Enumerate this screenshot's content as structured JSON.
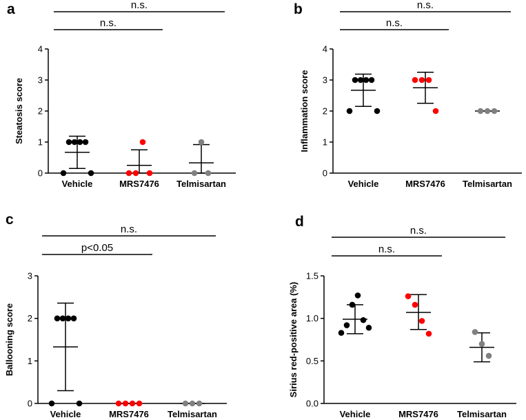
{
  "colors": {
    "Vehicle": "#000000",
    "MRS7476": "#ff0000",
    "Telmisartan": "#808080",
    "axis": "#000000"
  },
  "chart_data": [
    {
      "panel": "a",
      "type": "scatter",
      "title": "",
      "ylabel": "Steatosis score",
      "xlabel": "",
      "ylim": [
        0,
        4
      ],
      "yticks": [
        "0",
        "1",
        "2",
        "3",
        "4"
      ],
      "categories": [
        "Vehicle",
        "MRS7476",
        "Telmisartan"
      ],
      "points": [
        [
          0,
          1,
          1,
          1,
          1,
          0
        ],
        [
          0,
          0,
          1,
          0
        ],
        [
          0,
          1,
          0
        ]
      ],
      "mean": [
        0.67,
        0.25,
        0.33
      ],
      "sd_low": [
        0.15,
        0.0,
        0.0
      ],
      "sd_high": [
        1.19,
        0.75,
        0.92
      ],
      "comparisons": [
        {
          "from": "Vehicle",
          "to": "MRS7476",
          "label": "n.s."
        },
        {
          "from": "Vehicle",
          "to": "Telmisartan",
          "label": "n.s."
        }
      ]
    },
    {
      "panel": "b",
      "type": "scatter",
      "title": "",
      "ylabel": "Inflammation score",
      "xlabel": "",
      "ylim": [
        0,
        4
      ],
      "yticks": [
        "0",
        "1",
        "2",
        "3",
        "4"
      ],
      "categories": [
        "Vehicle",
        "MRS7476",
        "Telmisartan"
      ],
      "points": [
        [
          2,
          3,
          3,
          3,
          3,
          2
        ],
        [
          3,
          3,
          3,
          2
        ],
        [
          2,
          2,
          2
        ]
      ],
      "mean": [
        2.67,
        2.75,
        2.0
      ],
      "sd_low": [
        2.15,
        2.25,
        2.0
      ],
      "sd_high": [
        3.19,
        3.25,
        2.0
      ],
      "comparisons": [
        {
          "from": "Vehicle",
          "to": "MRS7476",
          "label": "n.s."
        },
        {
          "from": "Vehicle",
          "to": "Telmisartan",
          "label": "n.s."
        }
      ]
    },
    {
      "panel": "c",
      "type": "scatter",
      "title": "",
      "ylabel": "Ballooning score",
      "xlabel": "",
      "ylim": [
        0,
        3
      ],
      "yticks": [
        "0",
        "1",
        "2",
        "3"
      ],
      "categories": [
        "Vehicle",
        "MRS7476",
        "Telmisartan"
      ],
      "points": [
        [
          0,
          2,
          2,
          2,
          2,
          0
        ],
        [
          0,
          0,
          0,
          0
        ],
        [
          0,
          0,
          0
        ]
      ],
      "mean": [
        1.33,
        0.0,
        0.0
      ],
      "sd_low": [
        0.3,
        0.0,
        0.0
      ],
      "sd_high": [
        2.36,
        0.0,
        0.0
      ],
      "comparisons": [
        {
          "from": "Vehicle",
          "to": "MRS7476",
          "label": "p<0.05"
        },
        {
          "from": "Vehicle",
          "to": "Telmisartan",
          "label": "n.s."
        }
      ]
    },
    {
      "panel": "d",
      "type": "scatter",
      "title": "",
      "ylabel": "Sirius red-positive area (%)",
      "xlabel": "",
      "ylim": [
        0,
        1.5
      ],
      "yticks": [
        "0.0",
        "0.5",
        "1.0",
        "1.5"
      ],
      "categories": [
        "Vehicle",
        "MRS7476",
        "Telmisartan"
      ],
      "points": [
        [
          0.83,
          0.92,
          1.16,
          1.27,
          0.98,
          0.89
        ],
        [
          1.26,
          1.16,
          0.97,
          0.82
        ],
        [
          0.84,
          0.7,
          0.56
        ]
      ],
      "mean": [
        0.99,
        1.07,
        0.66
      ],
      "sd_low": [
        0.82,
        0.87,
        0.49
      ],
      "sd_high": [
        1.16,
        1.28,
        0.83
      ],
      "comparisons": [
        {
          "from": "Vehicle",
          "to": "MRS7476",
          "label": "n.s."
        },
        {
          "from": "Vehicle",
          "to": "Telmisartan",
          "label": "n.s."
        }
      ]
    }
  ]
}
